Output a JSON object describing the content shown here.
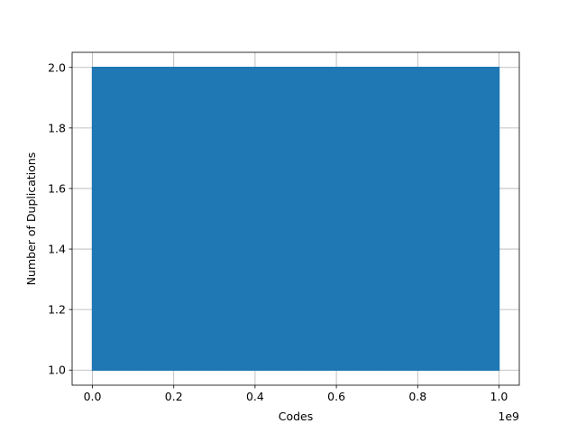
{
  "chart_data": {
    "type": "line",
    "title": "",
    "xlabel": "Codes",
    "ylabel": "Number of Duplications",
    "x_offset_label": "1e9",
    "xlim": [
      -0.05,
      1.05
    ],
    "ylim": [
      0.95,
      2.05
    ],
    "x_ticks": [
      0.0,
      0.2,
      0.4,
      0.6,
      0.8,
      1.0
    ],
    "x_tick_labels": [
      "0.0",
      "0.2",
      "0.4",
      "0.6",
      "0.8",
      "1.0"
    ],
    "y_ticks": [
      1.0,
      1.2,
      1.4,
      1.6,
      1.8,
      2.0
    ],
    "y_tick_labels": [
      "1.0",
      "1.2",
      "1.4",
      "1.6",
      "1.8",
      "2.0"
    ],
    "grid": true,
    "series": [
      {
        "color": "#1f77b4",
        "x_range": [
          0.0,
          1.0
        ],
        "values_oscillate_between": [
          1,
          2
        ],
        "description_note": "dense oscillation between 1 and 2 across the full x range"
      }
    ]
  }
}
